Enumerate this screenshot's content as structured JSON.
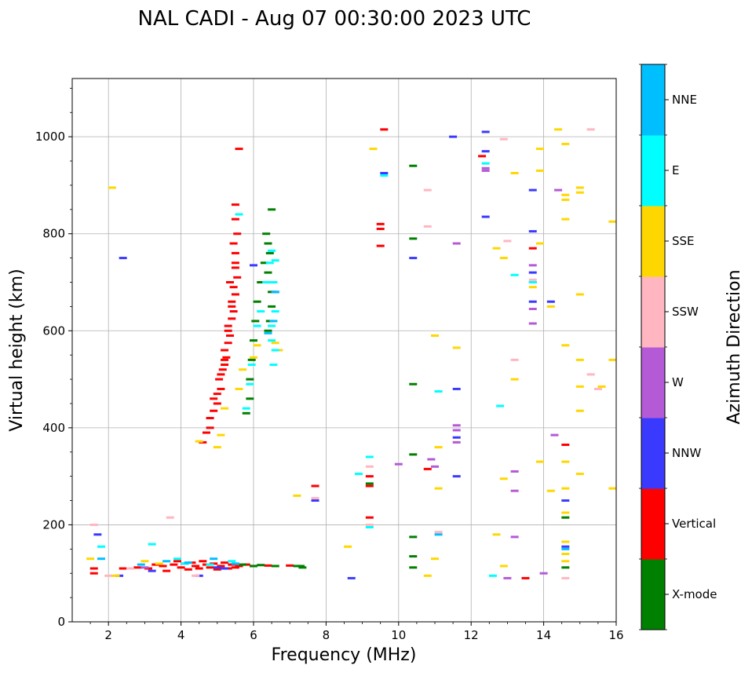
{
  "chart_data": {
    "type": "scatter",
    "title": "NAL CADI - Aug 07 00:30:00 2023 UTC",
    "xlabel": "Frequency (MHz)",
    "ylabel": "Virtual height (km)",
    "xlim": [
      1,
      16
    ],
    "ylim": [
      0,
      1120
    ],
    "xticks": [
      2,
      4,
      6,
      8,
      10,
      12,
      14,
      16
    ],
    "yticks": [
      0,
      200,
      400,
      600,
      800,
      1000
    ],
    "grid": true,
    "colorbar": {
      "title": "Azimuth Direction",
      "categories": [
        {
          "name": "X-mode",
          "color": "#008000"
        },
        {
          "name": "Vertical",
          "color": "#ff0000"
        },
        {
          "name": "NNW",
          "color": "#3a3aff"
        },
        {
          "name": "W",
          "color": "#b55ad6"
        },
        {
          "name": "SSW",
          "color": "#ffb6c1"
        },
        {
          "name": "SSE",
          "color": "#ffd700"
        },
        {
          "name": "E",
          "color": "#00ffff"
        },
        {
          "name": "NNE",
          "color": "#00bfff"
        }
      ]
    },
    "series": [
      {
        "name": "Vertical",
        "points": [
          [
            1.6,
            110
          ],
          [
            1.6,
            100
          ],
          [
            2.4,
            110
          ],
          [
            2.8,
            112
          ],
          [
            3.1,
            110
          ],
          [
            3.3,
            118
          ],
          [
            3.5,
            115
          ],
          [
            3.6,
            105
          ],
          [
            3.8,
            118
          ],
          [
            3.9,
            125
          ],
          [
            4.0,
            112
          ],
          [
            4.1,
            120
          ],
          [
            4.2,
            108
          ],
          [
            4.3,
            122
          ],
          [
            4.4,
            115
          ],
          [
            4.5,
            110
          ],
          [
            4.6,
            125
          ],
          [
            4.7,
            118
          ],
          [
            4.8,
            112
          ],
          [
            4.9,
            120
          ],
          [
            5.0,
            108
          ],
          [
            5.1,
            115
          ],
          [
            5.2,
            122
          ],
          [
            5.3,
            110
          ],
          [
            5.4,
            118
          ],
          [
            5.5,
            112
          ],
          [
            5.6,
            115
          ],
          [
            5.8,
            118
          ],
          [
            6.0,
            115
          ],
          [
            6.4,
            116
          ],
          [
            7.0,
            116
          ],
          [
            4.6,
            370
          ],
          [
            4.7,
            390
          ],
          [
            4.8,
            400
          ],
          [
            4.8,
            420
          ],
          [
            4.9,
            435
          ],
          [
            5.0,
            450
          ],
          [
            5.0,
            470
          ],
          [
            5.1,
            480
          ],
          [
            5.05,
            500
          ],
          [
            5.15,
            520
          ],
          [
            5.2,
            530
          ],
          [
            5.25,
            545
          ],
          [
            5.2,
            560
          ],
          [
            5.3,
            575
          ],
          [
            5.35,
            590
          ],
          [
            5.3,
            610
          ],
          [
            5.4,
            625
          ],
          [
            5.45,
            640
          ],
          [
            5.4,
            660
          ],
          [
            5.5,
            675
          ],
          [
            5.45,
            690
          ],
          [
            5.35,
            700
          ],
          [
            5.55,
            710
          ],
          [
            5.5,
            730
          ],
          [
            5.5,
            760
          ],
          [
            5.45,
            780
          ],
          [
            5.55,
            800
          ],
          [
            5.5,
            830
          ],
          [
            5.5,
            860
          ],
          [
            5.6,
            975
          ],
          [
            4.9,
            460
          ],
          [
            5.1,
            510
          ],
          [
            5.2,
            540
          ],
          [
            5.3,
            600
          ],
          [
            5.4,
            650
          ],
          [
            5.5,
            740
          ],
          [
            7.7,
            280
          ],
          [
            9.2,
            215
          ],
          [
            9.2,
            300
          ],
          [
            9.2,
            280
          ],
          [
            9.5,
            775
          ],
          [
            9.5,
            810
          ],
          [
            9.5,
            820
          ],
          [
            9.6,
            1015
          ],
          [
            10.8,
            315
          ],
          [
            12.3,
            960
          ],
          [
            13.5,
            90
          ],
          [
            13.7,
            770
          ],
          [
            14.6,
            365
          ]
        ]
      },
      {
        "name": "X-mode",
        "points": [
          [
            5.8,
            430
          ],
          [
            5.9,
            460
          ],
          [
            5.9,
            500
          ],
          [
            5.95,
            540
          ],
          [
            6.0,
            580
          ],
          [
            6.05,
            620
          ],
          [
            6.1,
            660
          ],
          [
            6.2,
            700
          ],
          [
            6.3,
            740
          ],
          [
            6.4,
            780
          ],
          [
            6.35,
            800
          ],
          [
            6.45,
            760
          ],
          [
            6.4,
            720
          ],
          [
            6.5,
            680
          ],
          [
            6.5,
            650
          ],
          [
            6.45,
            620
          ],
          [
            6.4,
            600
          ],
          [
            6.5,
            850
          ],
          [
            5.7,
            118
          ],
          [
            6.0,
            115
          ],
          [
            6.2,
            117
          ],
          [
            6.6,
            115
          ],
          [
            7.2,
            115
          ],
          [
            7.35,
            112
          ],
          [
            7.3,
            115
          ],
          [
            9.2,
            285
          ],
          [
            10.4,
            940
          ],
          [
            10.4,
            790
          ],
          [
            10.4,
            490
          ],
          [
            10.4,
            345
          ],
          [
            10.4,
            175
          ],
          [
            10.4,
            135
          ],
          [
            10.4,
            112
          ],
          [
            14.6,
            215
          ],
          [
            14.6,
            112
          ]
        ]
      },
      {
        "name": "NNW",
        "points": [
          [
            1.7,
            180
          ],
          [
            2.4,
            750
          ],
          [
            2.3,
            95
          ],
          [
            3.2,
            105
          ],
          [
            4.5,
            95
          ],
          [
            5.0,
            112
          ],
          [
            5.2,
            110
          ],
          [
            6.0,
            735
          ],
          [
            6.6,
            680
          ],
          [
            7.7,
            250
          ],
          [
            8.7,
            90
          ],
          [
            9.6,
            925
          ],
          [
            10.4,
            750
          ],
          [
            11.5,
            1000
          ],
          [
            11.6,
            480
          ],
          [
            11.6,
            300
          ],
          [
            11.6,
            380
          ],
          [
            12.4,
            1010
          ],
          [
            12.4,
            970
          ],
          [
            12.4,
            835
          ],
          [
            13.7,
            890
          ],
          [
            13.7,
            805
          ],
          [
            13.7,
            720
          ],
          [
            13.7,
            660
          ],
          [
            14.2,
            660
          ],
          [
            14.6,
            250
          ],
          [
            14.6,
            155
          ]
        ]
      },
      {
        "name": "W",
        "points": [
          [
            3.0,
            112
          ],
          [
            10.0,
            325
          ],
          [
            10.9,
            335
          ],
          [
            11.0,
            320
          ],
          [
            11.6,
            780
          ],
          [
            11.6,
            405
          ],
          [
            11.6,
            395
          ],
          [
            11.6,
            370
          ],
          [
            12.4,
            935
          ],
          [
            12.4,
            930
          ],
          [
            13.2,
            310
          ],
          [
            13.2,
            270
          ],
          [
            13.2,
            175
          ],
          [
            13.0,
            90
          ],
          [
            13.7,
            735
          ],
          [
            13.7,
            700
          ],
          [
            13.7,
            645
          ],
          [
            13.7,
            615
          ],
          [
            14.0,
            100
          ],
          [
            14.3,
            385
          ],
          [
            14.4,
            890
          ]
        ]
      },
      {
        "name": "SSW",
        "points": [
          [
            1.6,
            200
          ],
          [
            2.0,
            95
          ],
          [
            2.6,
            110
          ],
          [
            3.7,
            215
          ],
          [
            4.4,
            95
          ],
          [
            7.7,
            255
          ],
          [
            9.2,
            200
          ],
          [
            9.2,
            320
          ],
          [
            10.8,
            815
          ],
          [
            10.8,
            890
          ],
          [
            11.1,
            185
          ],
          [
            12.9,
            995
          ],
          [
            13.0,
            785
          ],
          [
            13.2,
            540
          ],
          [
            13.7,
            705
          ],
          [
            14.6,
            90
          ],
          [
            15.3,
            1015
          ],
          [
            15.3,
            510
          ],
          [
            15.5,
            480
          ]
        ]
      },
      {
        "name": "SSE",
        "points": [
          [
            1.5,
            130
          ],
          [
            2.1,
            895
          ],
          [
            2.2,
            95
          ],
          [
            3.0,
            125
          ],
          [
            3.4,
            120
          ],
          [
            4.5,
            372
          ],
          [
            5.0,
            360
          ],
          [
            5.1,
            385
          ],
          [
            5.2,
            440
          ],
          [
            5.6,
            480
          ],
          [
            5.7,
            520
          ],
          [
            6.0,
            545
          ],
          [
            6.1,
            570
          ],
          [
            6.6,
            575
          ],
          [
            6.7,
            560
          ],
          [
            7.2,
            260
          ],
          [
            8.6,
            155
          ],
          [
            9.3,
            975
          ],
          [
            10.8,
            95
          ],
          [
            11.0,
            130
          ],
          [
            11.0,
            590
          ],
          [
            11.1,
            360
          ],
          [
            11.1,
            275
          ],
          [
            11.6,
            565
          ],
          [
            12.7,
            180
          ],
          [
            12.7,
            770
          ],
          [
            12.9,
            750
          ],
          [
            12.9,
            295
          ],
          [
            12.9,
            115
          ],
          [
            13.2,
            925
          ],
          [
            13.2,
            500
          ],
          [
            13.7,
            690
          ],
          [
            13.9,
            930
          ],
          [
            13.9,
            975
          ],
          [
            13.9,
            780
          ],
          [
            13.9,
            330
          ],
          [
            14.2,
            650
          ],
          [
            14.2,
            270
          ],
          [
            14.4,
            1015
          ],
          [
            14.6,
            985
          ],
          [
            14.6,
            880
          ],
          [
            14.6,
            870
          ],
          [
            14.6,
            830
          ],
          [
            14.6,
            570
          ],
          [
            14.6,
            330
          ],
          [
            14.6,
            275
          ],
          [
            14.6,
            225
          ],
          [
            14.6,
            165
          ],
          [
            14.6,
            140
          ],
          [
            14.6,
            125
          ],
          [
            15.0,
            895
          ],
          [
            15.0,
            885
          ],
          [
            15.0,
            675
          ],
          [
            15.0,
            540
          ],
          [
            15.0,
            485
          ],
          [
            15.0,
            435
          ],
          [
            15.0,
            305
          ],
          [
            15.6,
            485
          ],
          [
            15.9,
            825
          ],
          [
            15.9,
            540
          ],
          [
            15.9,
            275
          ]
        ]
      },
      {
        "name": "E",
        "points": [
          [
            1.8,
            155
          ],
          [
            3.2,
            160
          ],
          [
            3.9,
            130
          ],
          [
            4.1,
            120
          ],
          [
            4.8,
            118
          ],
          [
            5.4,
            125
          ],
          [
            5.8,
            440
          ],
          [
            5.9,
            490
          ],
          [
            5.95,
            530
          ],
          [
            6.1,
            610
          ],
          [
            6.2,
            640
          ],
          [
            6.35,
            700
          ],
          [
            6.45,
            740
          ],
          [
            6.5,
            765
          ],
          [
            6.6,
            745
          ],
          [
            6.55,
            700
          ],
          [
            6.6,
            640
          ],
          [
            6.5,
            610
          ],
          [
            6.5,
            580
          ],
          [
            6.6,
            560
          ],
          [
            6.55,
            530
          ],
          [
            5.6,
            840
          ],
          [
            9.2,
            195
          ],
          [
            9.2,
            340
          ],
          [
            8.9,
            305
          ],
          [
            9.6,
            920
          ],
          [
            11.1,
            475
          ],
          [
            12.4,
            945
          ],
          [
            12.6,
            95
          ],
          [
            12.8,
            445
          ],
          [
            13.2,
            715
          ],
          [
            13.7,
            700
          ]
        ]
      },
      {
        "name": "NNE",
        "points": [
          [
            1.8,
            130
          ],
          [
            2.9,
            118
          ],
          [
            3.6,
            125
          ],
          [
            4.2,
            122
          ],
          [
            4.9,
            130
          ],
          [
            5.5,
            120
          ],
          [
            6.4,
            595
          ],
          [
            6.55,
            620
          ],
          [
            6.6,
            680
          ],
          [
            11.1,
            180
          ],
          [
            14.6,
            150
          ]
        ]
      }
    ]
  }
}
